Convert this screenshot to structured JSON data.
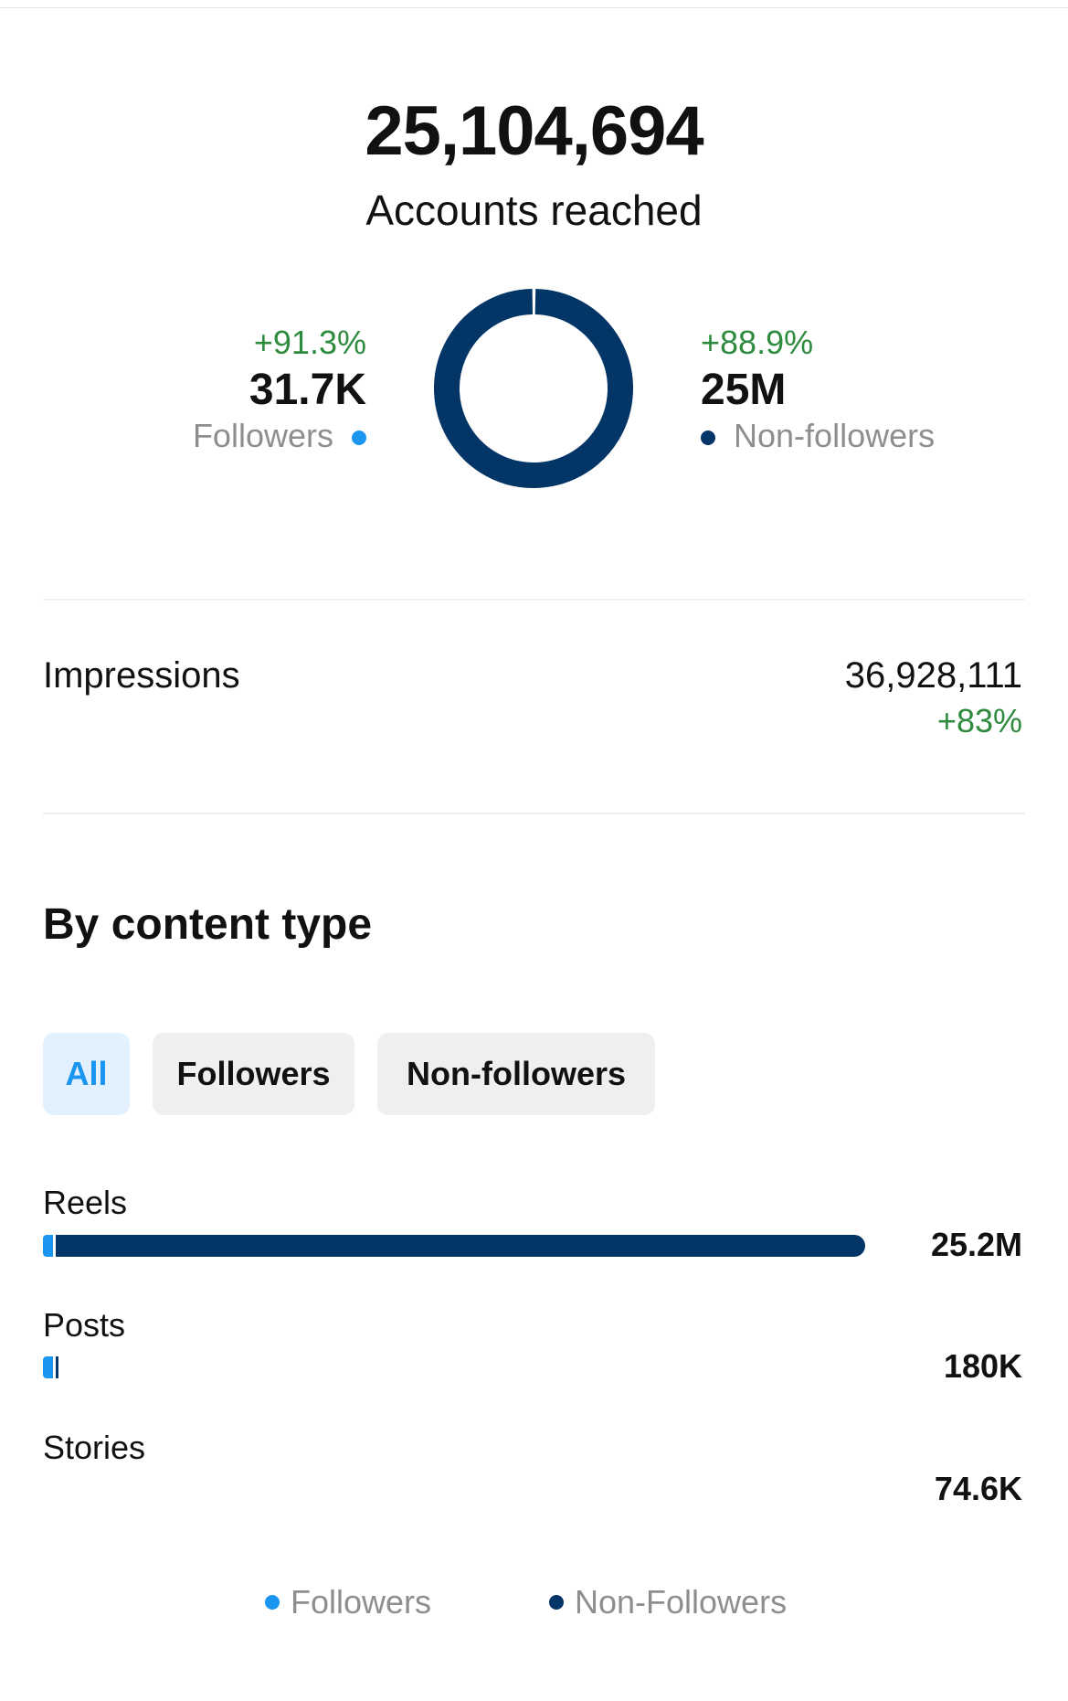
{
  "reach": {
    "total": "25,104,694",
    "label": "Accounts reached",
    "followers": {
      "change": "+91.3%",
      "value": "31.7K",
      "label": "Followers",
      "share": 0.0013
    },
    "non_followers": {
      "change": "+88.9%",
      "value": "25M",
      "label": "Non-followers",
      "share": 0.9987
    }
  },
  "impressions": {
    "label": "Impressions",
    "value": "36,928,111",
    "change": "+83%"
  },
  "content_type": {
    "title": "By content type",
    "filters": [
      {
        "label": "All",
        "active": true
      },
      {
        "label": "Followers",
        "active": false
      },
      {
        "label": "Non-followers",
        "active": false
      }
    ],
    "rows": [
      {
        "label": "Reels",
        "value": "25.2M",
        "total_fraction": 1.0,
        "followers_fraction": 0.012
      },
      {
        "label": "Posts",
        "value": "180K",
        "total_fraction": 0.0143,
        "followers_fraction": 0.012
      },
      {
        "label": "Stories",
        "value": "74.6K",
        "total_fraction": 0.0,
        "followers_fraction": 0.0
      }
    ],
    "legend": [
      {
        "label": "Followers",
        "color": "#1a95f0"
      },
      {
        "label": "Non-Followers",
        "color": "#033567"
      }
    ]
  },
  "colors": {
    "followers": "#1a95f0",
    "non_followers": "#033567",
    "positive": "#2e8b3e"
  }
}
